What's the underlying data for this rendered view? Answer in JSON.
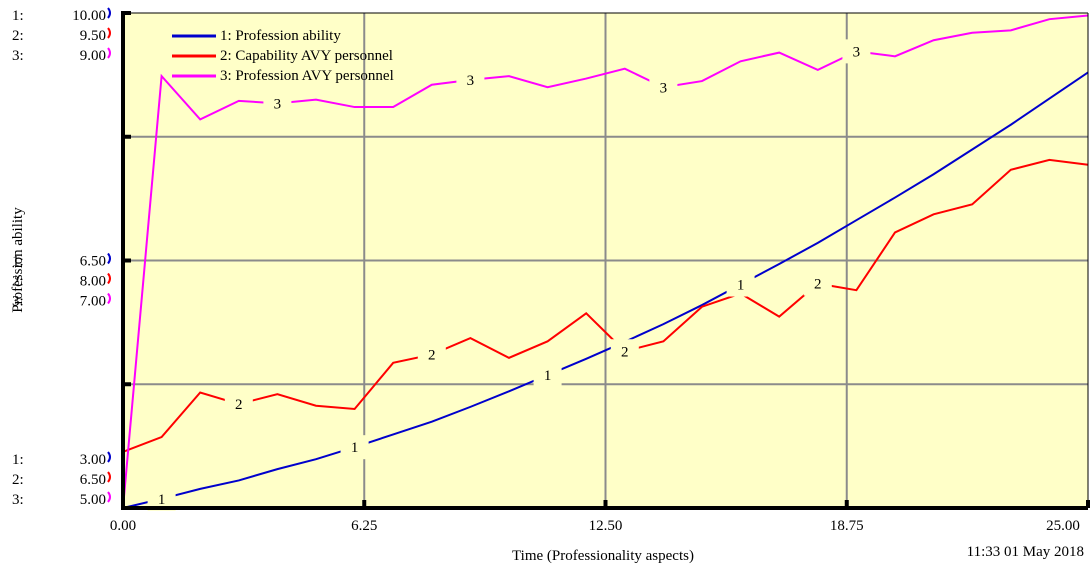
{
  "chart_data": {
    "type": "line",
    "xlabel": "Time (Professionality aspects)",
    "ylabel": "Profession ability",
    "timestamp": "11:33 01 May 2018",
    "xlim": [
      0,
      25
    ],
    "x_ticks": [
      "0.00",
      "6.25",
      "12.50",
      "18.75",
      "25.00"
    ],
    "grid": true,
    "legend_position": "top-left",
    "y_axes": [
      {
        "prefix": "1:",
        "ticks": [
          "3.00",
          "6.50",
          "10.00"
        ]
      },
      {
        "prefix": "2:",
        "ticks": [
          "6.50",
          "8.00",
          "9.50"
        ]
      },
      {
        "prefix": "3:",
        "ticks": [
          "5.00",
          "7.00",
          "9.00"
        ]
      }
    ],
    "series": [
      {
        "marker": "1",
        "name": "1: Profession ability",
        "color": "#0000cc",
        "ylim": [
          3.0,
          10.0
        ],
        "x": [
          0,
          1,
          2,
          3,
          4,
          5,
          6,
          7,
          8,
          9,
          10,
          11,
          12,
          13,
          14,
          15,
          16,
          17,
          18,
          19,
          20,
          21,
          22,
          23,
          24,
          25
        ],
        "y": [
          3.0,
          3.13,
          3.27,
          3.39,
          3.55,
          3.69,
          3.86,
          4.04,
          4.22,
          4.43,
          4.65,
          4.88,
          5.11,
          5.35,
          5.6,
          5.87,
          6.16,
          6.45,
          6.75,
          7.07,
          7.39,
          7.72,
          8.07,
          8.42,
          8.79,
          9.16
        ]
      },
      {
        "marker": "2",
        "name": "2: Capability AVY personnel",
        "color": "#ff0000",
        "ylim": [
          6.5,
          9.5
        ],
        "x": [
          0,
          1,
          2,
          3,
          4,
          5,
          6,
          7,
          8,
          9,
          10,
          11,
          12,
          13,
          14,
          15,
          16,
          17,
          18,
          19,
          20,
          21,
          22,
          23,
          24,
          25
        ],
        "y": [
          6.84,
          6.93,
          7.2,
          7.13,
          7.19,
          7.12,
          7.1,
          7.38,
          7.43,
          7.53,
          7.41,
          7.51,
          7.68,
          7.45,
          7.51,
          7.72,
          7.8,
          7.66,
          7.86,
          7.82,
          8.17,
          8.28,
          8.34,
          8.55,
          8.61,
          8.58
        ]
      },
      {
        "marker": "3",
        "name": "3: Profession AVY personnel",
        "color": "#ff00ff",
        "ylim": [
          5.0,
          9.0
        ],
        "x": [
          0,
          1,
          2,
          3,
          4,
          5,
          6,
          7,
          8,
          9,
          10,
          11,
          12,
          13,
          14,
          15,
          16,
          17,
          18,
          19,
          20,
          21,
          22,
          23,
          24,
          25
        ],
        "y": [
          5.0,
          8.49,
          8.14,
          8.29,
          8.27,
          8.3,
          8.24,
          8.24,
          8.42,
          8.46,
          8.49,
          8.4,
          8.47,
          8.55,
          8.4,
          8.45,
          8.61,
          8.68,
          8.54,
          8.69,
          8.65,
          8.78,
          8.84,
          8.86,
          8.95,
          8.98
        ]
      }
    ]
  }
}
